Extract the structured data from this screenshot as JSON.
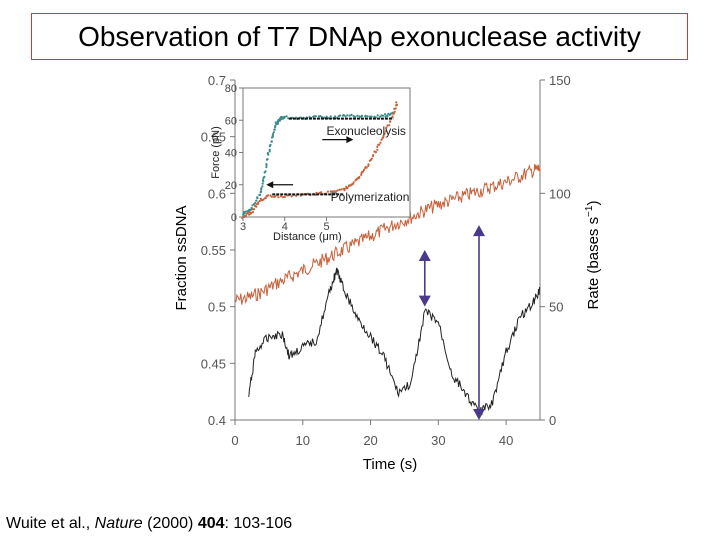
{
  "slide": {
    "title": "Observation of T7 DNAp exonuclease activity",
    "citation": {
      "authors": "Wuite et al., ",
      "journal": "Nature",
      "year": " (2000) ",
      "volume": "404",
      "pages": ": 103-106"
    }
  },
  "colors": {
    "fraction_series": "#c8603a",
    "rate_series": "#222222",
    "arrow": "#4b3a8c",
    "inset_exo": "#3a8a8a",
    "inset_pol": "#c8603a",
    "title_border": "#d23a3a"
  },
  "chart_data": [
    {
      "type": "line",
      "title": "",
      "xlabel": "Time (s)",
      "ylabel": "Fraction ssDNA",
      "y2label": "Rate (bases s",
      "y2label_exponent": "−1",
      "y2label_close": ")",
      "xlim": [
        0,
        45
      ],
      "ylim": [
        0.4,
        0.7
      ],
      "y2lim": [
        0,
        150
      ],
      "xticks": [
        "0",
        "10",
        "20",
        "30",
        "40"
      ],
      "yticks": [
        "0.4",
        "0.45",
        "0.5",
        "0.55",
        "0.6",
        "0.65",
        "0.7"
      ],
      "y2ticks": [
        "0",
        "50",
        "100",
        "150"
      ],
      "grid": false,
      "series": [
        {
          "axis": "left",
          "x": [
            0,
            2,
            4,
            6,
            8,
            10,
            12,
            14,
            16,
            18,
            20,
            22,
            24,
            26,
            28,
            30,
            32,
            34,
            36,
            38,
            40,
            42,
            44,
            45
          ],
          "y": [
            0.505,
            0.508,
            0.513,
            0.52,
            0.526,
            0.532,
            0.538,
            0.544,
            0.55,
            0.556,
            0.562,
            0.568,
            0.574,
            0.579,
            0.585,
            0.59,
            0.594,
            0.598,
            0.602,
            0.606,
            0.61,
            0.615,
            0.62,
            0.622
          ]
        },
        {
          "axis": "right",
          "x": [
            2,
            3,
            5,
            7,
            8,
            10,
            12,
            14,
            15,
            16,
            18,
            20,
            22,
            24,
            26,
            28,
            30,
            32,
            34,
            36,
            38,
            40,
            42,
            44,
            45
          ],
          "y": [
            10,
            30,
            37,
            38,
            28,
            32,
            35,
            57,
            66,
            58,
            45,
            37,
            28,
            12,
            16,
            48,
            43,
            20,
            12,
            3,
            8,
            30,
            45,
            52,
            58
          ]
        }
      ],
      "annotations": [
        {
          "type": "double-arrow",
          "x": 28,
          "y2_from": 50,
          "y2_to": 75
        },
        {
          "type": "double-arrow",
          "x": 36,
          "y2_from": 0,
          "y2_to": 86
        }
      ]
    },
    {
      "type": "scatter",
      "xlabel": "Distance (μm)",
      "ylabel": "Force (pN)",
      "xlim": [
        3,
        7
      ],
      "ylim": [
        0,
        80
      ],
      "xticks": [
        "3",
        "4",
        "5"
      ],
      "yticks": [
        "0",
        "20",
        "40",
        "60",
        "80"
      ],
      "series": [
        {
          "x": [
            3.0,
            3.2,
            3.4,
            3.5,
            3.6,
            3.7,
            3.8,
            3.9,
            4.0,
            4.4,
            4.8,
            5.2,
            5.6,
            6.0,
            6.4,
            6.6
          ],
          "y": [
            2,
            5,
            14,
            24,
            38,
            50,
            58,
            61,
            62,
            61,
            62,
            62,
            63,
            62,
            63,
            64
          ]
        },
        {
          "x": [
            3.0,
            3.2,
            3.4,
            3.6,
            4.0,
            4.5,
            5.0,
            5.4,
            5.6,
            5.8,
            6.0,
            6.2,
            6.4,
            6.6,
            6.7
          ],
          "y": [
            0,
            3,
            10,
            13,
            13,
            14,
            15,
            17,
            20,
            25,
            32,
            42,
            52,
            64,
            72
          ]
        }
      ],
      "annotations": [
        {
          "text": "Exonucleolysis",
          "direction": "right"
        },
        {
          "text": "Polymerization",
          "direction": "left"
        }
      ]
    }
  ]
}
